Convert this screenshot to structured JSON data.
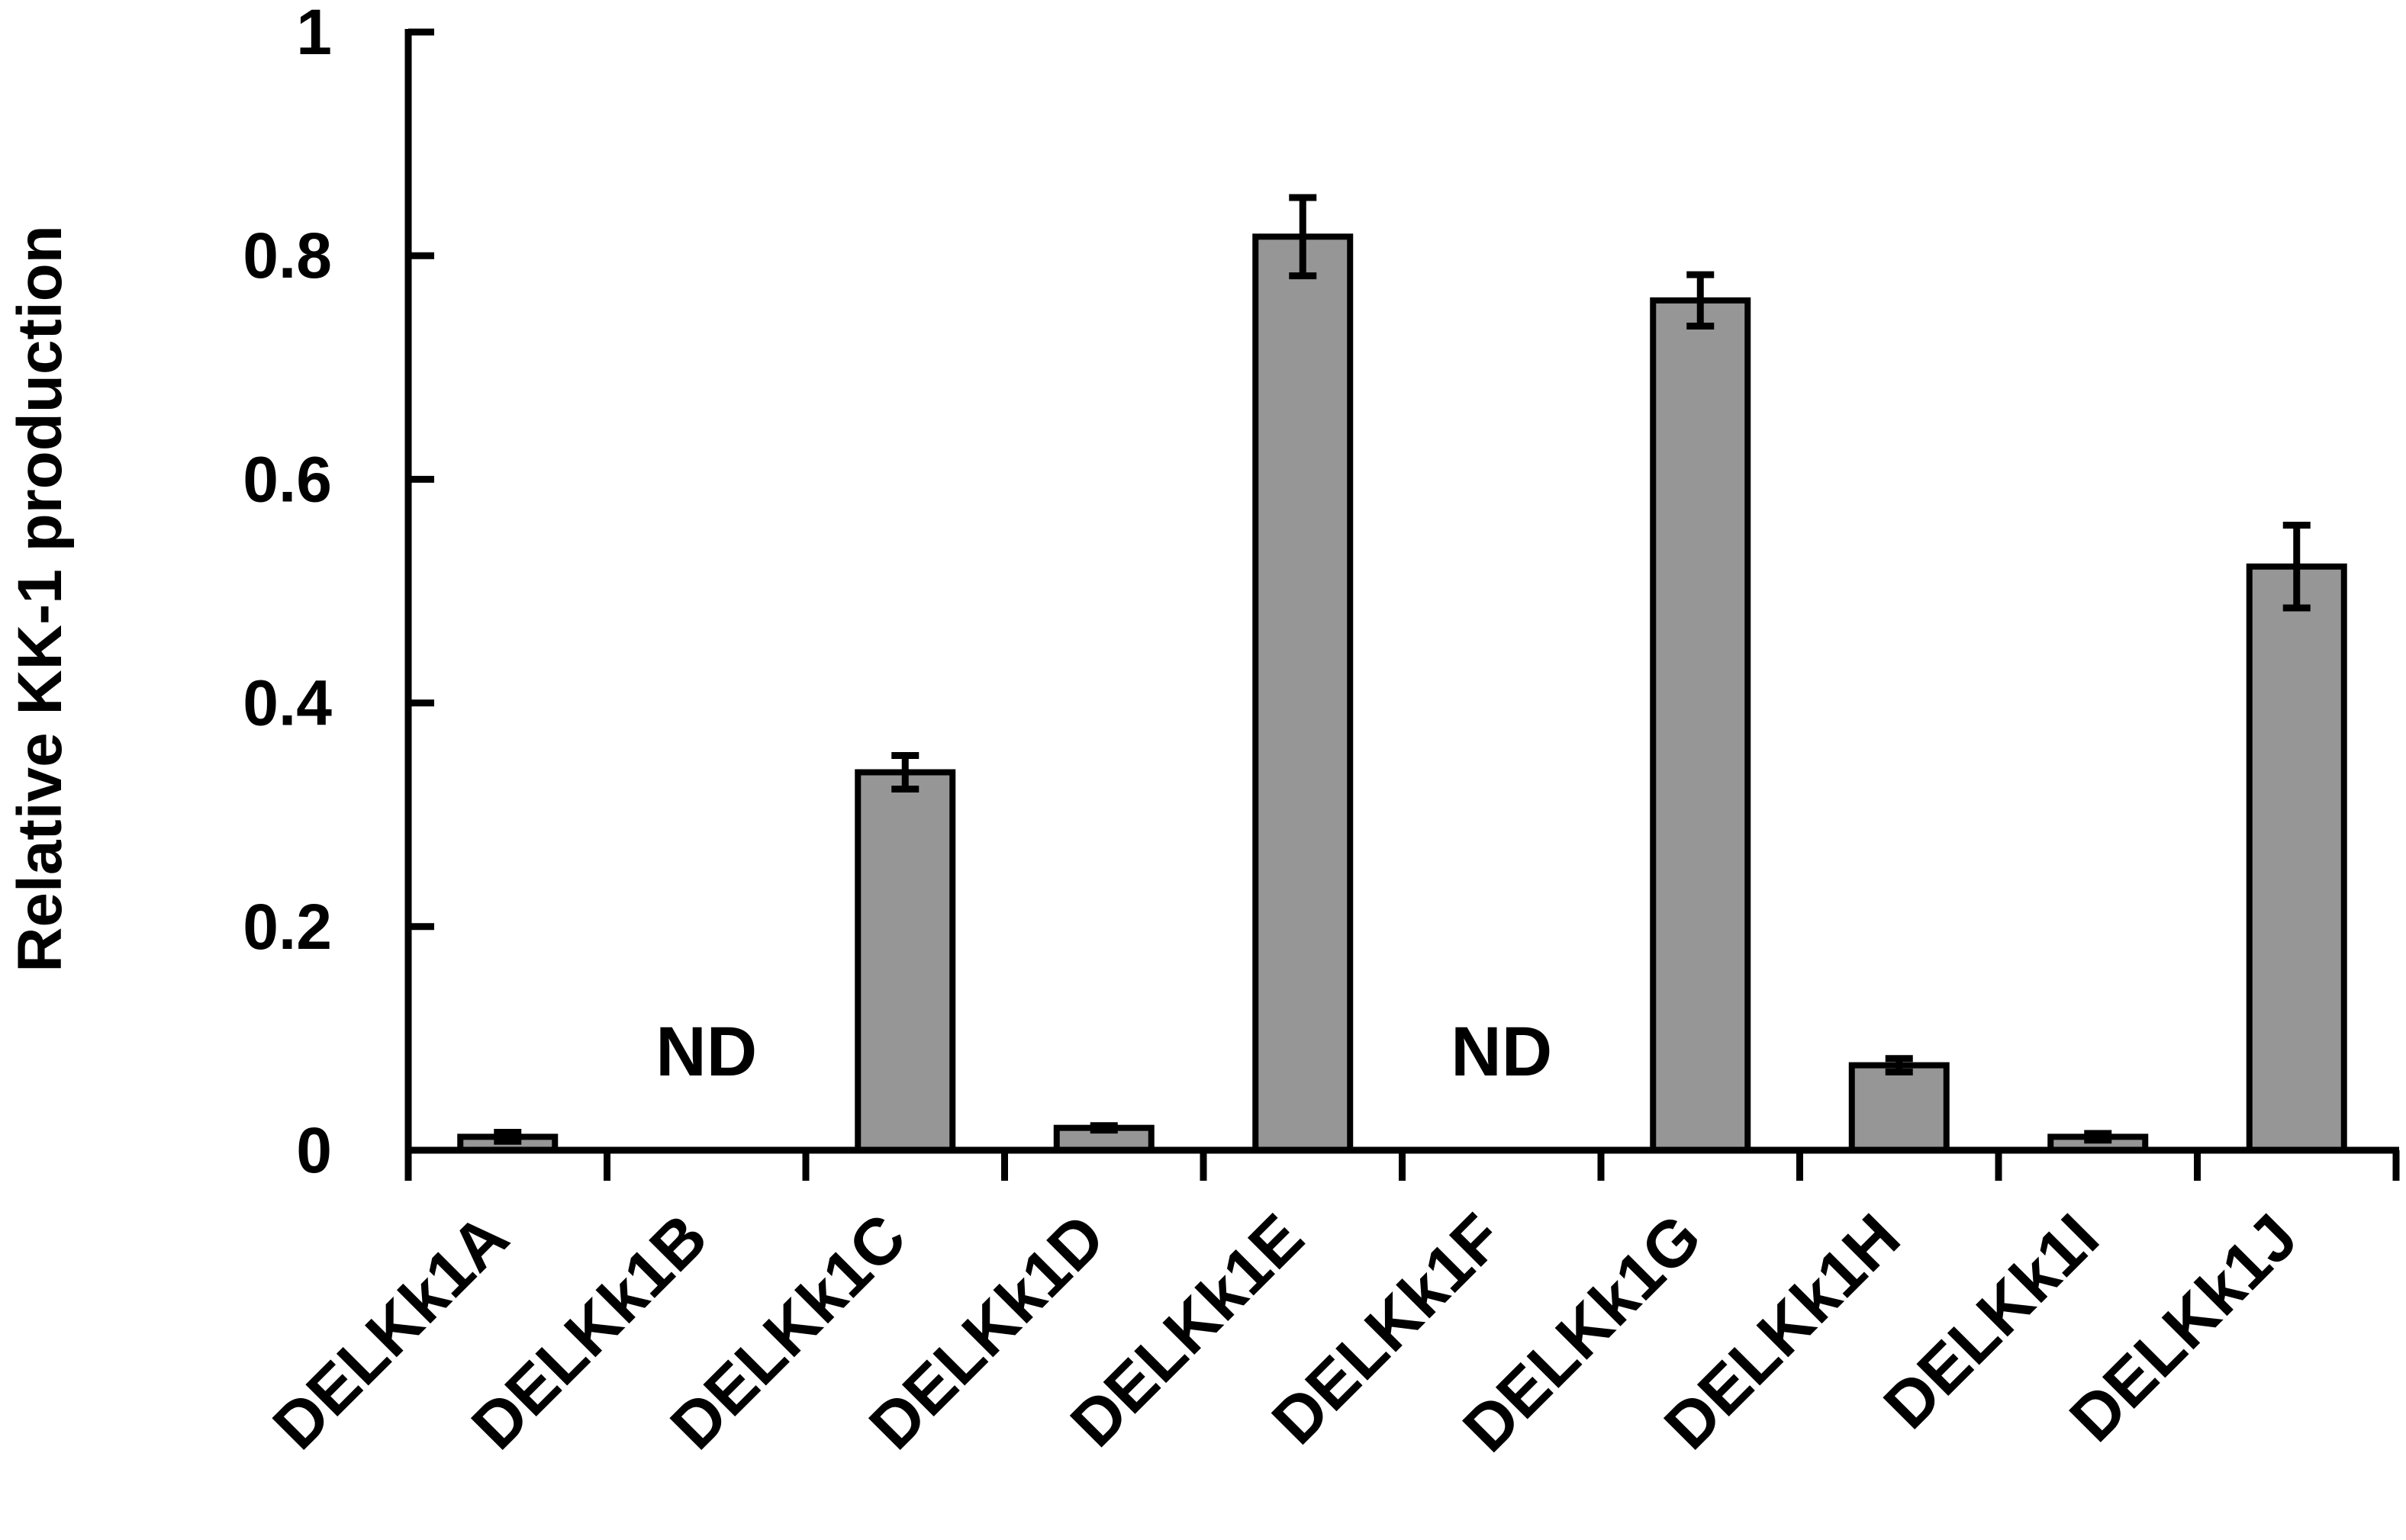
{
  "chart_data": {
    "type": "bar",
    "title": "",
    "xlabel": "",
    "ylabel": "Relative KK-1 production",
    "ylim": [
      0,
      1
    ],
    "yticks": [
      0,
      0.2,
      0.4,
      0.6,
      0.8,
      1
    ],
    "ytick_labels": [
      "0",
      "0.2",
      "0.4",
      "0.6",
      "0.8",
      "1"
    ],
    "categories": [
      "DELKk1A",
      "DELKk1B",
      "DELKk1C",
      "DELKk1D",
      "DELKk1E",
      "DELKk1F",
      "DELKk1G",
      "DELKk1H",
      "DELKk1I",
      "DELKk1J"
    ],
    "values": [
      0.012,
      null,
      0.338,
      0.02,
      0.817,
      null,
      0.76,
      0.076,
      0.012,
      0.522
    ],
    "errors": [
      0.004,
      null,
      0.015,
      0.002,
      0.035,
      null,
      0.023,
      0.006,
      0.003,
      0.037
    ],
    "annotations": [
      "",
      "ND",
      "",
      "",
      "",
      "ND",
      "",
      "",
      "",
      ""
    ],
    "grid": false,
    "legend": "none",
    "colors": {
      "bar_fill": "#969696",
      "bar_stroke": "#000000",
      "axis": "#000000"
    }
  }
}
